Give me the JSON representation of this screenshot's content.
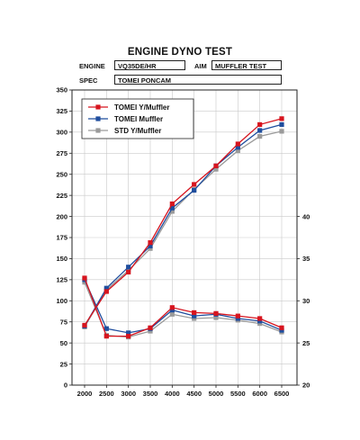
{
  "header": {
    "title": "ENGINE DYNO TEST",
    "engine_label": "ENGINE",
    "engine_value": "VQ35DE/HR",
    "aim_label": "AIM",
    "aim_value": "MUFFLER TEST",
    "spec_label": "SPEC",
    "spec_value": "TOMEI PONCAM"
  },
  "chart_data": {
    "type": "line",
    "x": [
      2000,
      2500,
      3000,
      3500,
      4000,
      4500,
      5000,
      5500,
      6000,
      6500
    ],
    "x_ticks": [
      "2000",
      "2500",
      "3000",
      "3500",
      "4000",
      "4500",
      "5000",
      "5500",
      "6000",
      "6500"
    ],
    "ylim_left": [
      0,
      350
    ],
    "y_ticks_left": [
      "0",
      "25",
      "50",
      "75",
      "100",
      "125",
      "150",
      "175",
      "200",
      "225",
      "250",
      "275",
      "300",
      "325",
      "350"
    ],
    "ylim_right": [
      20,
      55
    ],
    "y_ticks_right": [
      "20",
      "25",
      "30",
      "35",
      "40"
    ],
    "grid": true,
    "legend_position": "top-left",
    "series": [
      {
        "name": "TOMEI Y/Muffler",
        "color": "#d7141e",
        "marker": "square",
        "power_values": [
          71,
          111,
          134,
          169,
          215,
          238,
          260,
          286,
          309,
          316
        ],
        "torque_values": [
          32.7,
          25.8,
          25.8,
          26.8,
          29.2,
          28.6,
          28.5,
          28.2,
          27.9,
          26.8
        ]
      },
      {
        "name": "TOMEI Muffler",
        "color": "#1f4e9e",
        "marker": "square",
        "power_values": [
          70,
          115,
          140,
          165,
          210,
          231,
          260,
          282,
          302,
          309
        ],
        "torque_values": [
          32.5,
          26.7,
          26.2,
          26.7,
          28.9,
          28.2,
          28.4,
          27.9,
          27.6,
          26.5
        ]
      },
      {
        "name": "STD Y/Muffler",
        "color": "#9a9a9a",
        "marker": "square",
        "power_values": [
          69,
          113,
          136,
          162,
          206,
          232,
          256,
          278,
          295,
          301
        ],
        "torque_values": [
          32.2,
          25.9,
          25.7,
          26.4,
          28.4,
          27.9,
          28.0,
          27.7,
          27.3,
          26.3
        ]
      }
    ]
  }
}
